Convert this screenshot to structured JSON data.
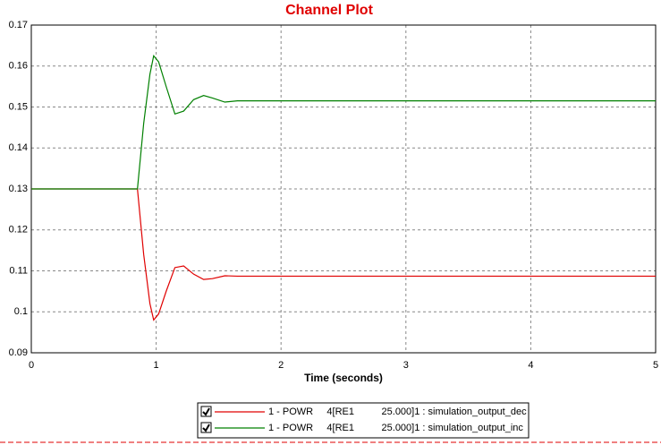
{
  "chart_data": {
    "type": "line",
    "title": "Channel Plot",
    "x_label": "Time (seconds)",
    "x": [
      0,
      0.85,
      0.9,
      0.95,
      0.98,
      1.02,
      1.08,
      1.15,
      1.22,
      1.3,
      1.38,
      1.45,
      1.55,
      1.65,
      2,
      3,
      4,
      5
    ],
    "series": [
      {
        "name": "1 - POWR     4[RE1          25.000]1 : simulation_output_dec",
        "color": "#e00000",
        "values": [
          0.13,
          0.13,
          0.114,
          0.102,
          0.098,
          0.0995,
          0.105,
          0.1108,
          0.1112,
          0.1092,
          0.1079,
          0.1081,
          0.1088,
          0.1087,
          0.1087,
          0.1087,
          0.1087,
          0.1087
        ]
      },
      {
        "name": "1 - POWR     4[RE1          25.000]1 : simulation_output_inc",
        "color": "#008000",
        "values": [
          0.13,
          0.13,
          0.146,
          0.158,
          0.1625,
          0.161,
          0.155,
          0.1483,
          0.149,
          0.1518,
          0.1528,
          0.1522,
          0.1512,
          0.1515,
          0.1515,
          0.1515,
          0.1515,
          0.1515
        ]
      }
    ],
    "xlim": [
      0,
      5
    ],
    "ylim": [
      0.09,
      0.17
    ],
    "xticks": [
      0,
      1,
      2,
      3,
      4,
      5
    ],
    "yticks": [
      0.09,
      0.1,
      0.11,
      0.12,
      0.13,
      0.14,
      0.15,
      0.16,
      0.17
    ],
    "grid": true
  }
}
